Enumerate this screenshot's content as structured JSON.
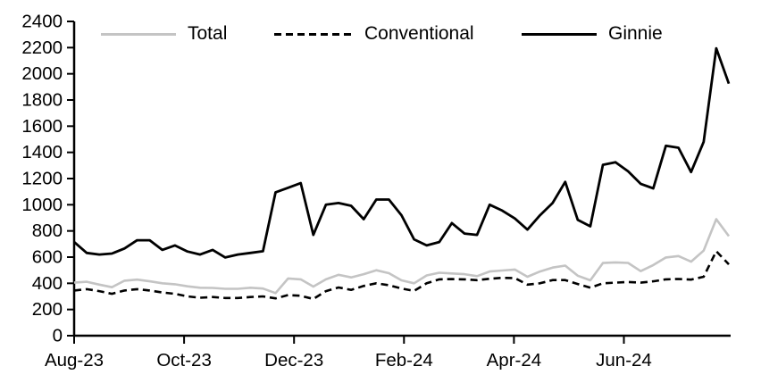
{
  "chart_data": {
    "type": "line",
    "title": "",
    "xlabel": "",
    "ylabel": "",
    "x_frequency": "weekly",
    "x_tick_labels": [
      "Aug-23",
      "Oct-23",
      "Dec-23",
      "Feb-24",
      "Apr-24",
      "Jun-24"
    ],
    "y_ticks": [
      0,
      200,
      400,
      600,
      800,
      1000,
      1200,
      1400,
      1600,
      1800,
      2000,
      2200,
      2400
    ],
    "ylim": [
      0,
      2400
    ],
    "grid": false,
    "legend_position": "top",
    "axis_color": "#000000",
    "series": [
      {
        "name": "Total",
        "color": "#c4c4c4",
        "style": "solid",
        "values": [
          405,
          412,
          390,
          370,
          420,
          428,
          415,
          400,
          393,
          377,
          366,
          365,
          358,
          358,
          366,
          360,
          325,
          437,
          430,
          375,
          430,
          465,
          445,
          470,
          500,
          477,
          423,
          400,
          460,
          481,
          475,
          470,
          455,
          490,
          498,
          505,
          450,
          490,
          520,
          535,
          458,
          423,
          555,
          560,
          556,
          493,
          539,
          597,
          608,
          565,
          650,
          890,
          760
        ]
      },
      {
        "name": "Conventional",
        "color": "#000000",
        "style": "dashed",
        "values": [
          345,
          355,
          340,
          320,
          345,
          355,
          345,
          330,
          320,
          300,
          290,
          295,
          288,
          288,
          295,
          300,
          285,
          310,
          305,
          280,
          340,
          368,
          350,
          380,
          400,
          385,
          360,
          342,
          400,
          430,
          432,
          430,
          424,
          435,
          442,
          440,
          390,
          400,
          425,
          425,
          395,
          366,
          400,
          405,
          410,
          405,
          415,
          430,
          433,
          428,
          450,
          645,
          545
        ]
      },
      {
        "name": "Ginnie",
        "color": "#000000",
        "style": "solid",
        "values": [
          715,
          632,
          620,
          627,
          666,
          729,
          729,
          655,
          689,
          643,
          620,
          655,
          597,
          620,
          632,
          645,
          1095,
          1130,
          1165,
          770,
          1000,
          1013,
          992,
          890,
          1040,
          1040,
          920,
          736,
          689,
          715,
          860,
          780,
          770,
          1000,
          955,
          895,
          810,
          920,
          1013,
          1175,
          885,
          835,
          1305,
          1325,
          1255,
          1160,
          1125,
          1450,
          1435,
          1250,
          1480,
          2195,
          1925
        ]
      }
    ]
  }
}
